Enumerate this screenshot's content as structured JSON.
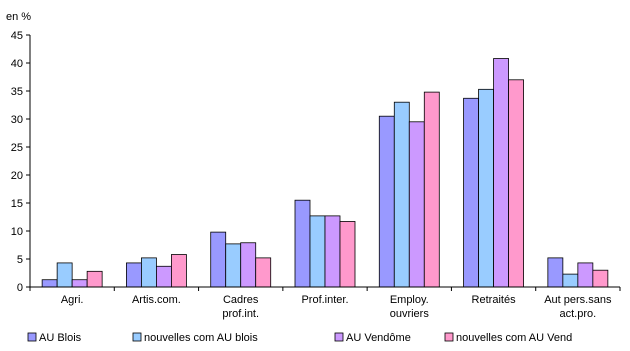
{
  "chart_data": {
    "type": "bar",
    "ylabel": "en %",
    "ylim": [
      0,
      45
    ],
    "yticks": [
      0,
      5,
      10,
      15,
      20,
      25,
      30,
      35,
      40,
      45
    ],
    "grid": false,
    "legend_position": "bottom",
    "categories": [
      [
        "Agri."
      ],
      [
        "Artis.com."
      ],
      [
        "Cadres",
        "prof.int."
      ],
      [
        "Prof.inter."
      ],
      [
        "Employ.",
        "ouvriers"
      ],
      [
        "Retraités"
      ],
      [
        "Aut pers.sans",
        "act.pro."
      ]
    ],
    "series": [
      {
        "name": "AU Blois",
        "color": "#9999ff",
        "values": [
          1.3,
          4.3,
          9.8,
          15.5,
          30.5,
          33.7,
          5.2
        ]
      },
      {
        "name": "nouvelles com AU blois",
        "color": "#99ccff",
        "values": [
          4.3,
          5.2,
          7.7,
          12.7,
          33.0,
          35.3,
          2.3
        ]
      },
      {
        "name": "AU Vendôme",
        "color": "#cc99ff",
        "values": [
          1.3,
          3.7,
          7.9,
          12.7,
          29.5,
          40.8,
          4.3
        ]
      },
      {
        "name": "nouvelles com AU Vend",
        "color": "#ff99cc",
        "values": [
          2.8,
          5.8,
          5.2,
          11.7,
          34.8,
          37.0,
          3.0
        ]
      }
    ]
  }
}
